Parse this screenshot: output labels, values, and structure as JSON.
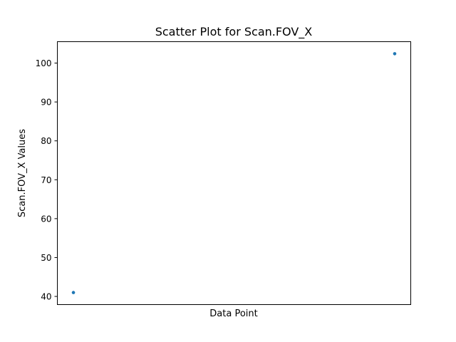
{
  "chart_data": {
    "type": "scatter",
    "title": "Scatter Plot for Scan.FOV_X",
    "xlabel": "Data Point",
    "ylabel": "Scan.FOV_X Values",
    "x": [
      0,
      1
    ],
    "y": [
      41.0,
      102.4
    ],
    "xlim": [
      -0.05,
      1.05
    ],
    "ylim": [
      37.9,
      105.5
    ],
    "yticks": [
      40,
      50,
      60,
      70,
      80,
      90,
      100
    ],
    "xticks_visible": false,
    "grid": false,
    "marker_color": "#1f77b4"
  }
}
